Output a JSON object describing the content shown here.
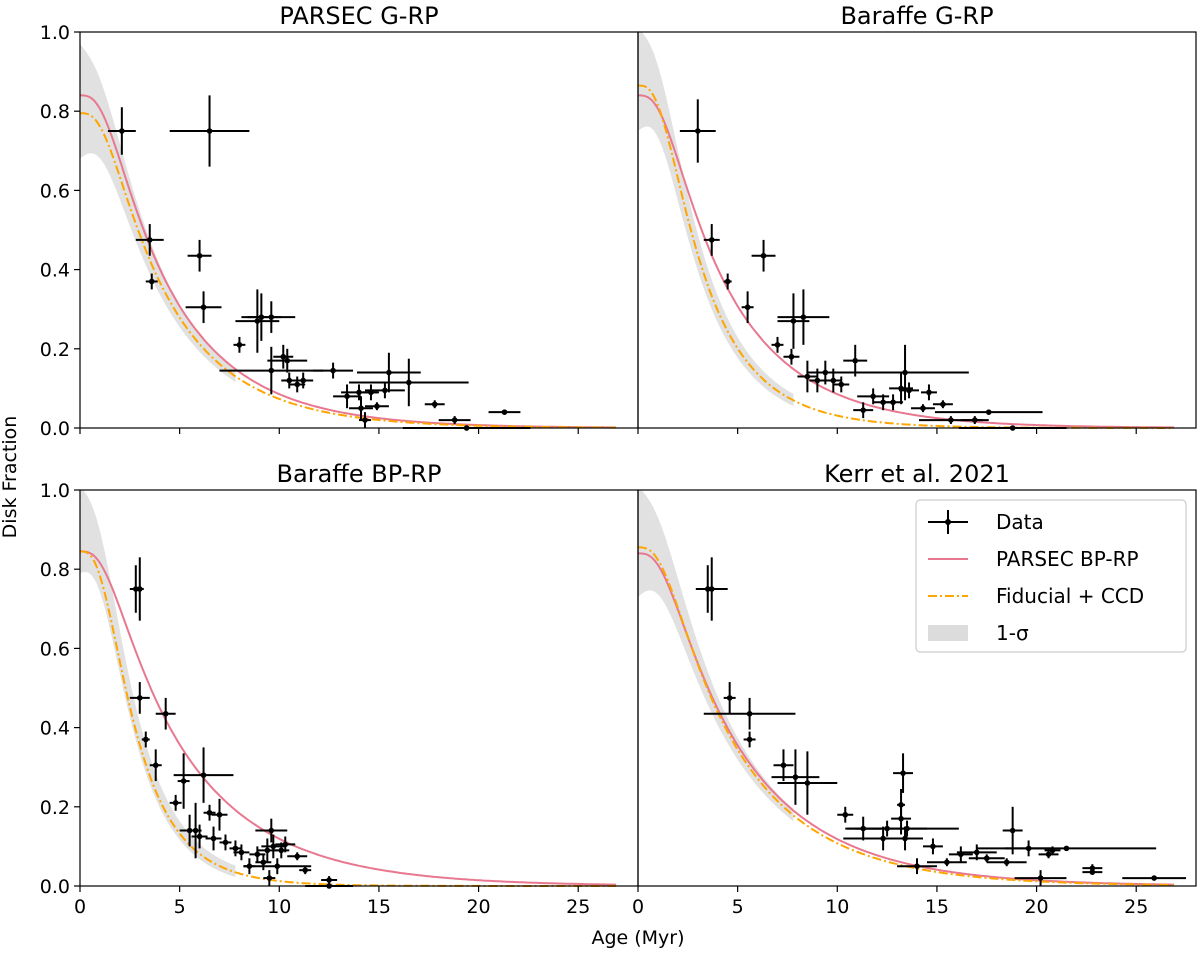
{
  "figure": {
    "ylabel": "Disk Fraction",
    "xlabel": "Age (Myr)",
    "xlim": [
      0,
      28
    ],
    "ylim": [
      0,
      1
    ],
    "x_ticks": [
      0,
      5,
      10,
      15,
      20,
      25
    ],
    "y_ticks": [
      0.0,
      0.2,
      0.4,
      0.6,
      0.8,
      1.0
    ],
    "colors": {
      "parsec": "#e8788f",
      "fiducial": "#ffa500",
      "band": "#dcdcdc",
      "data": "#000000"
    },
    "legend": {
      "position": "top-right of lower-right panel",
      "entries": [
        "Data",
        "PARSEC BP-RP",
        "Fiducial + CCD",
        "1-σ"
      ]
    }
  },
  "chart_data": [
    {
      "type": "scatter",
      "title": "PARSEC G-RP",
      "xlabel": "",
      "ylabel": "Disk Fraction",
      "xlim": [
        0,
        28
      ],
      "ylim": [
        0,
        1
      ],
      "model_parsec": {
        "a": 0.84,
        "tau": 4.8,
        "tail": 0.0
      },
      "model_fiducial": {
        "a": 0.795,
        "tau": 4.6,
        "tail": 0.0
      },
      "band": {
        "hi_start": 0.96,
        "lo_start": 0.69
      },
      "points": [
        {
          "x": 2.1,
          "y": 0.75,
          "xe": 0.7,
          "ye": 0.06
        },
        {
          "x": 6.5,
          "y": 0.75,
          "xe": 2.0,
          "ye": 0.09
        },
        {
          "x": 3.5,
          "y": 0.475,
          "xe": 0.7,
          "ye": 0.04
        },
        {
          "x": 3.6,
          "y": 0.37,
          "xe": 0.3,
          "ye": 0.02
        },
        {
          "x": 6.0,
          "y": 0.435,
          "xe": 0.6,
          "ye": 0.04
        },
        {
          "x": 6.2,
          "y": 0.305,
          "xe": 0.9,
          "ye": 0.04
        },
        {
          "x": 8.0,
          "y": 0.21,
          "xe": 0.3,
          "ye": 0.02
        },
        {
          "x": 8.9,
          "y": 0.27,
          "xe": 1.1,
          "ye": 0.08
        },
        {
          "x": 9.1,
          "y": 0.28,
          "xe": 1.0,
          "ye": 0.06
        },
        {
          "x": 9.6,
          "y": 0.28,
          "xe": 1.2,
          "ye": 0.04
        },
        {
          "x": 9.6,
          "y": 0.145,
          "xe": 2.6,
          "ye": 0.06
        },
        {
          "x": 10.2,
          "y": 0.18,
          "xe": 0.5,
          "ye": 0.03
        },
        {
          "x": 10.4,
          "y": 0.17,
          "xe": 1.0,
          "ye": 0.03
        },
        {
          "x": 10.5,
          "y": 0.12,
          "xe": 0.4,
          "ye": 0.02
        },
        {
          "x": 10.9,
          "y": 0.11,
          "xe": 0.4,
          "ye": 0.02
        },
        {
          "x": 11.2,
          "y": 0.12,
          "xe": 0.5,
          "ye": 0.02
        },
        {
          "x": 12.7,
          "y": 0.145,
          "xe": 1.0,
          "ye": 0.02
        },
        {
          "x": 13.4,
          "y": 0.08,
          "xe": 0.7,
          "ye": 0.03
        },
        {
          "x": 14.0,
          "y": 0.09,
          "xe": 0.9,
          "ye": 0.02
        },
        {
          "x": 14.1,
          "y": 0.05,
          "xe": 0.6,
          "ye": 0.03
        },
        {
          "x": 14.3,
          "y": 0.02,
          "xe": 0.3,
          "ye": 0.02
        },
        {
          "x": 14.6,
          "y": 0.09,
          "xe": 0.4,
          "ye": 0.02
        },
        {
          "x": 14.9,
          "y": 0.055,
          "xe": 0.6,
          "ye": 0.01
        },
        {
          "x": 15.3,
          "y": 0.095,
          "xe": 1.0,
          "ye": 0.02
        },
        {
          "x": 15.5,
          "y": 0.14,
          "xe": 1.6,
          "ye": 0.05
        },
        {
          "x": 16.5,
          "y": 0.115,
          "xe": 3.0,
          "ye": 0.06
        },
        {
          "x": 17.8,
          "y": 0.06,
          "xe": 0.5,
          "ye": 0.01
        },
        {
          "x": 18.8,
          "y": 0.02,
          "xe": 0.8,
          "ye": 0.01
        },
        {
          "x": 19.4,
          "y": 0.0,
          "xe": 3.2,
          "ye": 0.005
        },
        {
          "x": 21.3,
          "y": 0.04,
          "xe": 0.8,
          "ye": 0.005
        }
      ]
    },
    {
      "type": "scatter",
      "title": "Baraffe G-RP",
      "xlabel": "",
      "ylabel": "",
      "xlim": [
        0,
        28
      ],
      "ylim": [
        0,
        1
      ],
      "model_parsec": {
        "a": 0.84,
        "tau": 4.8,
        "tail": 0.0
      },
      "model_fiducial": {
        "a": 0.865,
        "tau": 3.3,
        "tail": 0.0
      },
      "band": {
        "hi_start": 1.0,
        "lo_start": 0.76
      },
      "points": [
        {
          "x": 3.0,
          "y": 0.75,
          "xe": 0.9,
          "ye": 0.08
        },
        {
          "x": 3.7,
          "y": 0.475,
          "xe": 0.4,
          "ye": 0.04
        },
        {
          "x": 4.5,
          "y": 0.37,
          "xe": 0.2,
          "ye": 0.02
        },
        {
          "x": 6.3,
          "y": 0.435,
          "xe": 0.6,
          "ye": 0.04
        },
        {
          "x": 5.5,
          "y": 0.305,
          "xe": 0.3,
          "ye": 0.04
        },
        {
          "x": 7.0,
          "y": 0.21,
          "xe": 0.3,
          "ye": 0.02
        },
        {
          "x": 7.8,
          "y": 0.27,
          "xe": 0.8,
          "ye": 0.07
        },
        {
          "x": 8.3,
          "y": 0.28,
          "xe": 1.3,
          "ye": 0.07
        },
        {
          "x": 7.7,
          "y": 0.18,
          "xe": 0.4,
          "ye": 0.02
        },
        {
          "x": 8.5,
          "y": 0.13,
          "xe": 0.5,
          "ye": 0.04
        },
        {
          "x": 9.0,
          "y": 0.12,
          "xe": 0.4,
          "ye": 0.03
        },
        {
          "x": 9.4,
          "y": 0.14,
          "xe": 0.9,
          "ye": 0.03
        },
        {
          "x": 9.8,
          "y": 0.12,
          "xe": 0.4,
          "ye": 0.03
        },
        {
          "x": 10.2,
          "y": 0.11,
          "xe": 0.4,
          "ye": 0.02
        },
        {
          "x": 10.9,
          "y": 0.17,
          "xe": 0.6,
          "ye": 0.04
        },
        {
          "x": 11.3,
          "y": 0.045,
          "xe": 0.5,
          "ye": 0.02
        },
        {
          "x": 11.8,
          "y": 0.08,
          "xe": 0.8,
          "ye": 0.02
        },
        {
          "x": 12.3,
          "y": 0.065,
          "xe": 0.5,
          "ye": 0.02
        },
        {
          "x": 12.8,
          "y": 0.065,
          "xe": 0.5,
          "ye": 0.02
        },
        {
          "x": 13.2,
          "y": 0.1,
          "xe": 0.6,
          "ye": 0.04
        },
        {
          "x": 13.4,
          "y": 0.14,
          "xe": 3.2,
          "ye": 0.07
        },
        {
          "x": 13.6,
          "y": 0.095,
          "xe": 0.5,
          "ye": 0.02
        },
        {
          "x": 14.3,
          "y": 0.05,
          "xe": 0.6,
          "ye": 0.01
        },
        {
          "x": 14.6,
          "y": 0.09,
          "xe": 0.4,
          "ye": 0.02
        },
        {
          "x": 15.3,
          "y": 0.06,
          "xe": 0.5,
          "ye": 0.01
        },
        {
          "x": 15.7,
          "y": 0.02,
          "xe": 1.6,
          "ye": 0.01
        },
        {
          "x": 16.9,
          "y": 0.02,
          "xe": 0.7,
          "ye": 0.01
        },
        {
          "x": 17.6,
          "y": 0.04,
          "xe": 2.7,
          "ye": 0.005
        },
        {
          "x": 18.8,
          "y": 0.0,
          "xe": 2.7,
          "ye": 0.005
        }
      ]
    },
    {
      "type": "scatter",
      "title": "Baraffe BP-RP",
      "xlabel": "",
      "ylabel": "Disk Fraction",
      "xlim": [
        0,
        28
      ],
      "ylim": [
        0,
        1
      ],
      "model_parsec": {
        "a": 0.845,
        "tau": 5.6,
        "tail": 0.0
      },
      "model_fiducial": {
        "a": 0.845,
        "tau": 2.6,
        "tail": 0.0
      },
      "band": {
        "hi_start": 1.0,
        "lo_start": 0.8
      },
      "points": [
        {
          "x": 2.8,
          "y": 0.75,
          "xe": 0.3,
          "ye": 0.06
        },
        {
          "x": 3.0,
          "y": 0.75,
          "xe": 0.2,
          "ye": 0.08
        },
        {
          "x": 3.0,
          "y": 0.475,
          "xe": 0.5,
          "ye": 0.04
        },
        {
          "x": 3.3,
          "y": 0.37,
          "xe": 0.2,
          "ye": 0.02
        },
        {
          "x": 3.8,
          "y": 0.305,
          "xe": 0.3,
          "ye": 0.04
        },
        {
          "x": 4.3,
          "y": 0.435,
          "xe": 0.5,
          "ye": 0.04
        },
        {
          "x": 4.8,
          "y": 0.21,
          "xe": 0.3,
          "ye": 0.02
        },
        {
          "x": 5.2,
          "y": 0.265,
          "xe": 0.3,
          "ye": 0.07
        },
        {
          "x": 5.5,
          "y": 0.14,
          "xe": 0.5,
          "ye": 0.04
        },
        {
          "x": 5.8,
          "y": 0.14,
          "xe": 0.3,
          "ye": 0.07
        },
        {
          "x": 6.0,
          "y": 0.125,
          "xe": 0.4,
          "ye": 0.03
        },
        {
          "x": 6.2,
          "y": 0.28,
          "xe": 1.5,
          "ye": 0.07
        },
        {
          "x": 6.5,
          "y": 0.185,
          "xe": 0.3,
          "ye": 0.02
        },
        {
          "x": 6.7,
          "y": 0.12,
          "xe": 0.4,
          "ye": 0.03
        },
        {
          "x": 7.0,
          "y": 0.18,
          "xe": 0.4,
          "ye": 0.04
        },
        {
          "x": 7.3,
          "y": 0.11,
          "xe": 0.3,
          "ye": 0.02
        },
        {
          "x": 7.8,
          "y": 0.095,
          "xe": 0.3,
          "ye": 0.02
        },
        {
          "x": 8.1,
          "y": 0.085,
          "xe": 0.4,
          "ye": 0.02
        },
        {
          "x": 8.5,
          "y": 0.05,
          "xe": 0.3,
          "ye": 0.02
        },
        {
          "x": 8.9,
          "y": 0.08,
          "xe": 0.4,
          "ye": 0.02
        },
        {
          "x": 9.2,
          "y": 0.06,
          "xe": 0.4,
          "ye": 0.02
        },
        {
          "x": 9.4,
          "y": 0.09,
          "xe": 0.5,
          "ye": 0.03
        },
        {
          "x": 9.5,
          "y": 0.02,
          "xe": 0.3,
          "ye": 0.02
        },
        {
          "x": 9.6,
          "y": 0.14,
          "xe": 0.8,
          "ye": 0.03
        },
        {
          "x": 9.7,
          "y": 0.1,
          "xe": 0.6,
          "ye": 0.03
        },
        {
          "x": 9.9,
          "y": 0.05,
          "xe": 1.7,
          "ye": 0.02
        },
        {
          "x": 10.1,
          "y": 0.09,
          "xe": 0.4,
          "ye": 0.02
        },
        {
          "x": 10.3,
          "y": 0.105,
          "xe": 0.5,
          "ye": 0.02
        },
        {
          "x": 10.9,
          "y": 0.075,
          "xe": 0.5,
          "ye": 0.01
        },
        {
          "x": 11.3,
          "y": 0.04,
          "xe": 0.3,
          "ye": 0.01
        },
        {
          "x": 12.5,
          "y": 0.015,
          "xe": 0.4,
          "ye": 0.01
        },
        {
          "x": 12.5,
          "y": 0.0,
          "xe": 1.2,
          "ye": 0.005
        }
      ]
    },
    {
      "type": "scatter",
      "title": "Kerr et al. 2021",
      "xlabel": "Age (Myr)",
      "ylabel": "",
      "xlim": [
        0,
        28
      ],
      "ylim": [
        0,
        1
      ],
      "model_parsec": {
        "a": 0.84,
        "tau": 5.6,
        "tail": 0.0
      },
      "model_fiducial": {
        "a": 0.855,
        "tau": 5.3,
        "tail": 0.0
      },
      "band": {
        "hi_start": 1.0,
        "lo_start": 0.74
      },
      "points": [
        {
          "x": 3.5,
          "y": 0.75,
          "xe": 0.3,
          "ye": 0.06
        },
        {
          "x": 3.7,
          "y": 0.75,
          "xe": 0.8,
          "ye": 0.08
        },
        {
          "x": 4.6,
          "y": 0.475,
          "xe": 0.3,
          "ye": 0.04
        },
        {
          "x": 5.6,
          "y": 0.435,
          "xe": 2.3,
          "ye": 0.04
        },
        {
          "x": 5.6,
          "y": 0.37,
          "xe": 0.3,
          "ye": 0.02
        },
        {
          "x": 7.3,
          "y": 0.305,
          "xe": 0.5,
          "ye": 0.04
        },
        {
          "x": 7.9,
          "y": 0.275,
          "xe": 1.2,
          "ye": 0.07
        },
        {
          "x": 8.5,
          "y": 0.26,
          "xe": 1.5,
          "ye": 0.08
        },
        {
          "x": 10.4,
          "y": 0.18,
          "xe": 0.4,
          "ye": 0.02
        },
        {
          "x": 11.3,
          "y": 0.145,
          "xe": 0.9,
          "ye": 0.03
        },
        {
          "x": 12.3,
          "y": 0.12,
          "xe": 2.0,
          "ye": 0.03
        },
        {
          "x": 12.5,
          "y": 0.145,
          "xe": 2.0,
          "ye": 0.02
        },
        {
          "x": 13.2,
          "y": 0.17,
          "xe": 0.5,
          "ye": 0.04
        },
        {
          "x": 13.2,
          "y": 0.205,
          "xe": 0.2,
          "ye": 0.04
        },
        {
          "x": 13.3,
          "y": 0.285,
          "xe": 0.5,
          "ye": 0.05
        },
        {
          "x": 13.4,
          "y": 0.12,
          "xe": 0.5,
          "ye": 0.03
        },
        {
          "x": 13.5,
          "y": 0.145,
          "xe": 2.6,
          "ye": 0.02
        },
        {
          "x": 14.0,
          "y": 0.05,
          "xe": 1.0,
          "ye": 0.02
        },
        {
          "x": 14.8,
          "y": 0.1,
          "xe": 0.5,
          "ye": 0.02
        },
        {
          "x": 15.5,
          "y": 0.06,
          "xe": 1.0,
          "ye": 0.01
        },
        {
          "x": 16.2,
          "y": 0.08,
          "xe": 0.6,
          "ye": 0.02
        },
        {
          "x": 17.0,
          "y": 0.085,
          "xe": 1.0,
          "ye": 0.02
        },
        {
          "x": 17.5,
          "y": 0.07,
          "xe": 0.9,
          "ye": 0.01
        },
        {
          "x": 18.5,
          "y": 0.06,
          "xe": 1.0,
          "ye": 0.01
        },
        {
          "x": 18.8,
          "y": 0.14,
          "xe": 0.5,
          "ye": 0.06
        },
        {
          "x": 19.6,
          "y": 0.095,
          "xe": 1.2,
          "ye": 0.02
        },
        {
          "x": 20.2,
          "y": 0.02,
          "xe": 1.3,
          "ye": 0.02
        },
        {
          "x": 20.6,
          "y": 0.08,
          "xe": 0.5,
          "ye": 0.01
        },
        {
          "x": 20.8,
          "y": 0.09,
          "xe": 0.4,
          "ye": 0.01
        },
        {
          "x": 21.5,
          "y": 0.095,
          "xe": 4.5,
          "ye": 0.005
        },
        {
          "x": 22.8,
          "y": 0.045,
          "xe": 0.5,
          "ye": 0.01
        },
        {
          "x": 22.8,
          "y": 0.035,
          "xe": 0.5,
          "ye": 0.005
        },
        {
          "x": 25.9,
          "y": 0.02,
          "xe": 1.6,
          "ye": 0.005
        }
      ]
    }
  ]
}
